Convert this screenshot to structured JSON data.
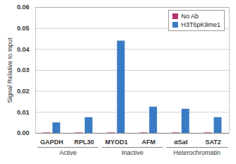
{
  "chart_data": {
    "type": "bar",
    "y_label": "Signal Relative to Input",
    "categories": [
      "GAPDH",
      "RPL30",
      "MYOD1",
      "AFM",
      "αSat",
      "SAT2"
    ],
    "series": [
      {
        "name": "No Ab",
        "color": "#b5336f",
        "values": [
          0.0002,
          0.0002,
          0.0002,
          0.0002,
          0.0002,
          0.0002
        ]
      },
      {
        "name": "H3T6pK9me1",
        "color": "#3a7cc4",
        "values": [
          0.005,
          0.0075,
          0.044,
          0.0125,
          0.0115,
          0.0075
        ]
      }
    ],
    "groups": [
      {
        "label": "Active",
        "categories": [
          "GAPDH",
          "RPL30"
        ]
      },
      {
        "label": "Inactive",
        "categories": [
          "MYOD1",
          "AFM"
        ]
      },
      {
        "label": "Heterochromatin",
        "categories": [
          "αSat",
          "SAT2"
        ]
      }
    ],
    "ylim": [
      0,
      0.06
    ],
    "yticks": [
      {
        "value": 0,
        "label": "0.00"
      },
      0.01,
      0.02,
      0.03,
      0.04,
      0.05,
      0.06
    ],
    "grid": true,
    "legend": "top-right"
  }
}
